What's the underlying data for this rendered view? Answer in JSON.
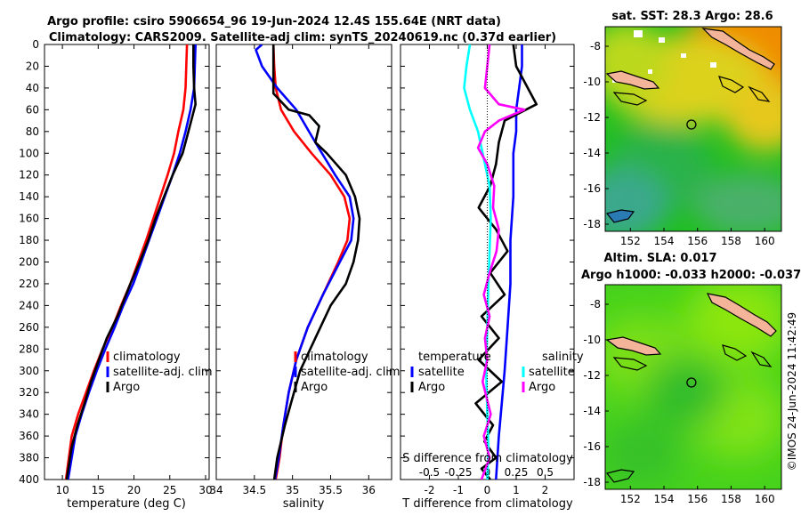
{
  "header": {
    "title_line1": "Argo profile: csiro 5906654_96 19-Jun-2024 12.4S 155.64E (NRT data)",
    "title_line2": "Climatology: CARS2009. Satellite-adj clim: synTS_20240619.nc (0.37d earlier)"
  },
  "credit": "©IMOS 24-Jun-2024 11:42:49",
  "colors": {
    "climatology": "#ff0000",
    "satellite": "#0000ff",
    "argo": "#000000",
    "sal_satellite": "#00ffff",
    "sal_argo": "#ff00ff",
    "land": "#f4b49a"
  },
  "chart_data": [
    {
      "id": "temperature",
      "type": "line",
      "xlabel": "temperature (deg C)",
      "ylabel": "",
      "xlim": [
        7.5,
        30.5
      ],
      "ylim": [
        0,
        400
      ],
      "y_reversed": true,
      "xticks": [
        10,
        15,
        20,
        25,
        30
      ],
      "yticks": [
        0,
        20,
        40,
        60,
        80,
        100,
        120,
        140,
        160,
        180,
        200,
        220,
        240,
        260,
        280,
        300,
        320,
        340,
        360,
        380,
        400
      ],
      "legend": [
        "climatology",
        "satellite-adj. clim",
        "Argo"
      ],
      "series": [
        {
          "name": "climatology",
          "color": "#ff0000",
          "x": [
            27.4,
            27.3,
            27.2,
            26.9,
            26.2,
            25.6,
            24.7,
            23.7,
            22.7,
            21.7,
            20.6,
            19.5,
            18.2,
            17.0,
            15.6,
            14.4,
            13.3,
            12.2,
            11.3,
            10.5
          ],
          "y": [
            0,
            20,
            40,
            60,
            80,
            100,
            120,
            140,
            160,
            180,
            200,
            220,
            240,
            260,
            280,
            300,
            320,
            340,
            360,
            400
          ]
        },
        {
          "name": "satellite-adj. clim",
          "color": "#0000ff",
          "x": [
            28.6,
            28.5,
            28.4,
            27.9,
            27.2,
            26.4,
            25.4,
            24.3,
            23.2,
            22.1,
            21.0,
            19.9,
            18.5,
            17.3,
            16.0,
            14.8,
            13.7,
            12.7,
            11.8,
            10.8
          ],
          "y": [
            0,
            20,
            40,
            60,
            80,
            100,
            120,
            140,
            160,
            180,
            200,
            220,
            240,
            260,
            280,
            300,
            320,
            340,
            360,
            400
          ]
        },
        {
          "name": "Argo",
          "color": "#000000",
          "x": [
            28.3,
            28.3,
            28.4,
            28.6,
            27.6,
            26.8,
            25.4,
            24.2,
            23.0,
            22.0,
            20.8,
            19.5,
            17.7,
            16.2,
            15.1,
            14.0,
            13.1,
            12.1,
            11.3,
            10.6
          ],
          "y": [
            0,
            20,
            40,
            55,
            80,
            100,
            120,
            140,
            160,
            180,
            200,
            220,
            250,
            270,
            290,
            310,
            330,
            350,
            370,
            400
          ]
        }
      ]
    },
    {
      "id": "salinity",
      "type": "line",
      "xlabel": "salinity",
      "ylabel": "",
      "xlim": [
        34.0,
        36.3
      ],
      "ylim": [
        0,
        400
      ],
      "y_reversed": true,
      "xticks": [
        34,
        34.5,
        35,
        35.5,
        36
      ],
      "xtick_labels": [
        "34",
        "34.5",
        "35",
        "35.5",
        "36"
      ],
      "legend": [
        "climatology",
        "satellite-adj. clim",
        "Argo"
      ],
      "series": [
        {
          "name": "climatology",
          "color": "#ff0000",
          "x": [
            34.75,
            34.76,
            34.78,
            34.85,
            35.02,
            35.25,
            35.5,
            35.68,
            35.75,
            35.72,
            35.6,
            35.4,
            35.2,
            35.05,
            34.95,
            34.88,
            34.83,
            34.78
          ],
          "y": [
            0,
            20,
            40,
            60,
            80,
            100,
            120,
            140,
            160,
            180,
            200,
            230,
            260,
            290,
            320,
            350,
            380,
            400
          ]
        },
        {
          "name": "satellite-adj. clim",
          "color": "#0000ff",
          "x": [
            34.6,
            34.52,
            34.6,
            34.8,
            35.05,
            35.3,
            35.56,
            35.75,
            35.8,
            35.77,
            35.62,
            35.4,
            35.2,
            35.05,
            34.95,
            34.88,
            34.82,
            34.77
          ],
          "y": [
            0,
            5,
            20,
            40,
            60,
            90,
            120,
            140,
            160,
            180,
            200,
            230,
            260,
            290,
            320,
            350,
            380,
            400
          ]
        },
        {
          "name": "Argo",
          "color": "#000000",
          "x": [
            34.75,
            34.75,
            34.75,
            34.95,
            35.22,
            35.35,
            35.3,
            35.45,
            35.7,
            35.82,
            35.88,
            35.86,
            35.8,
            35.7,
            35.5,
            35.3,
            35.1,
            34.98,
            34.9,
            34.8,
            34.76
          ],
          "y": [
            0,
            20,
            45,
            60,
            65,
            75,
            90,
            100,
            120,
            140,
            160,
            180,
            200,
            220,
            240,
            270,
            300,
            330,
            350,
            380,
            400
          ]
        }
      ]
    },
    {
      "id": "differences",
      "type": "line",
      "xlabel": "T difference from climatology",
      "secondary_label": "S difference from climatology",
      "xlim": [
        -3,
        3
      ],
      "ylim": [
        0,
        400
      ],
      "y_reversed": true,
      "xticks": [
        -2,
        -1,
        0,
        1,
        2
      ],
      "sal_ticks": [
        -0.5,
        -0.25,
        0,
        0.25,
        0.5
      ],
      "sal_tick_labels": [
        "-0.5",
        "-0.25",
        "0",
        "0.25",
        "0.5"
      ],
      "sal_scale": 4,
      "legend_headers": [
        "temperature",
        "salinity"
      ],
      "legend": [
        "satellite",
        "Argo",
        "satellite",
        "Argo"
      ],
      "series": [
        {
          "name": "T satellite",
          "color": "#0000ff",
          "x": [
            1.2,
            1.2,
            1.1,
            1.0,
            1.0,
            0.9,
            0.9,
            0.8,
            0.8,
            0.7,
            0.6,
            0.5,
            0.4,
            0.3
          ],
          "y": [
            0,
            20,
            40,
            60,
            80,
            100,
            140,
            180,
            220,
            260,
            300,
            330,
            360,
            400
          ]
        },
        {
          "name": "T Argo",
          "color": "#000000",
          "x": [
            0.9,
            1.0,
            1.4,
            1.7,
            0.6,
            0.4,
            0.3,
            0.1,
            -0.3,
            0.3,
            0.7,
            0.1,
            0.6,
            -0.2,
            0.4,
            -0.3,
            0.5,
            -0.4,
            0.2,
            -0.1,
            0.3,
            -0.2,
            0.1
          ],
          "y": [
            0,
            20,
            40,
            55,
            70,
            90,
            110,
            130,
            150,
            170,
            190,
            210,
            230,
            250,
            270,
            290,
            310,
            330,
            350,
            365,
            380,
            390,
            400
          ]
        },
        {
          "name": "S satellite",
          "color": "#00ffff",
          "x": [
            -0.15,
            -0.18,
            -0.2,
            -0.15,
            -0.08,
            -0.04,
            0.02,
            0.03,
            0.02,
            0.01,
            0.0,
            -0.01,
            0.0,
            0.01,
            0.0
          ],
          "y": [
            0,
            20,
            40,
            60,
            80,
            100,
            130,
            160,
            190,
            220,
            260,
            300,
            340,
            370,
            400
          ]
        },
        {
          "name": "S Argo",
          "color": "#ff00ff",
          "x": [
            0.02,
            0.0,
            -0.02,
            0.1,
            0.32,
            0.1,
            -0.02,
            -0.08,
            0.0,
            0.06,
            0.05,
            0.1,
            0.08,
            0.02,
            -0.03,
            0.02,
            -0.02,
            0.0,
            -0.04,
            0.03,
            -0.03,
            0.02,
            -0.05
          ],
          "y": [
            0,
            20,
            40,
            55,
            60,
            70,
            80,
            95,
            110,
            130,
            150,
            170,
            190,
            210,
            230,
            250,
            270,
            290,
            310,
            340,
            360,
            380,
            400
          ]
        }
      ]
    },
    {
      "id": "sst_map",
      "type": "heatmap",
      "title": "sat. SST: 28.3 Argo: 28.6",
      "xlim": [
        150.5,
        161.0
      ],
      "ylim": [
        -18.4,
        -6.9
      ],
      "xticks": [
        152,
        154,
        156,
        158,
        160
      ],
      "yticks": [
        -8,
        -10,
        -12,
        -14,
        -16,
        -18
      ],
      "argo_position": {
        "lon": 155.64,
        "lat": -12.4
      }
    },
    {
      "id": "sla_map",
      "type": "heatmap",
      "title": "Altim. SLA: 0.017",
      "subtitle": "Argo h1000: -0.033 h2000: -0.037",
      "xlim": [
        150.5,
        161.0
      ],
      "ylim": [
        -18.4,
        -6.9
      ],
      "xticks": [
        152,
        154,
        156,
        158,
        160
      ],
      "yticks": [
        -8,
        -10,
        -12,
        -14,
        -16,
        -18
      ],
      "argo_position": {
        "lon": 155.64,
        "lat": -12.4
      }
    }
  ]
}
